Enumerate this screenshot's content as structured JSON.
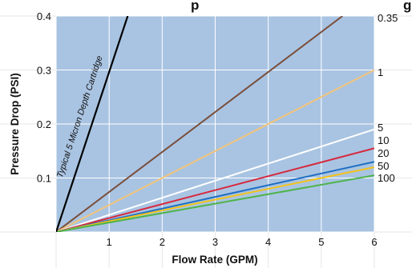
{
  "chart_data": {
    "type": "line",
    "title_fragment_left": "p",
    "title_fragment_right": "g",
    "xlabel": "Flow Rate (GPM)",
    "ylabel": "Pressure Drop (PSI)",
    "xlim": [
      0,
      6
    ],
    "ylim": [
      0,
      0.4
    ],
    "x_ticks": [
      "1",
      "2",
      "3",
      "4",
      "5",
      "6"
    ],
    "y_ticks": [
      "0.1",
      "0.2",
      "0.3",
      "0.4"
    ],
    "grid": true,
    "plot_background": "#a9c4e2",
    "series": [
      {
        "name": "0.35",
        "color": "#7a4e3a",
        "points": [
          [
            0,
            0
          ],
          [
            5.4,
            0.4
          ]
        ]
      },
      {
        "name": "1",
        "color": "#f2c47a",
        "points": [
          [
            0,
            0
          ],
          [
            6,
            0.3
          ]
        ]
      },
      {
        "name": "5",
        "color": "#ffffff",
        "points": [
          [
            0,
            0
          ],
          [
            6,
            0.19
          ]
        ]
      },
      {
        "name": "10",
        "color": "#d6283c",
        "points": [
          [
            0,
            0
          ],
          [
            6,
            0.155
          ]
        ]
      },
      {
        "name": "20",
        "color": "#1f6fc4",
        "points": [
          [
            0,
            0
          ],
          [
            6,
            0.13
          ]
        ]
      },
      {
        "name": "50",
        "color": "#f3c21a",
        "points": [
          [
            0,
            0
          ],
          [
            6,
            0.12
          ]
        ]
      },
      {
        "name": "100",
        "color": "#4fb34a",
        "points": [
          [
            0,
            0
          ],
          [
            6,
            0.105
          ]
        ]
      },
      {
        "name": "Typical 5 Micron Depth Cartridge",
        "color": "#000000",
        "points": [
          [
            0,
            0
          ],
          [
            1.35,
            0.4
          ]
        ]
      }
    ],
    "right_labels": [
      "0.35",
      "1",
      "5",
      "10",
      "20",
      "50",
      "100"
    ],
    "annotation": "Typical 5 Micron Depth Cartridge"
  }
}
